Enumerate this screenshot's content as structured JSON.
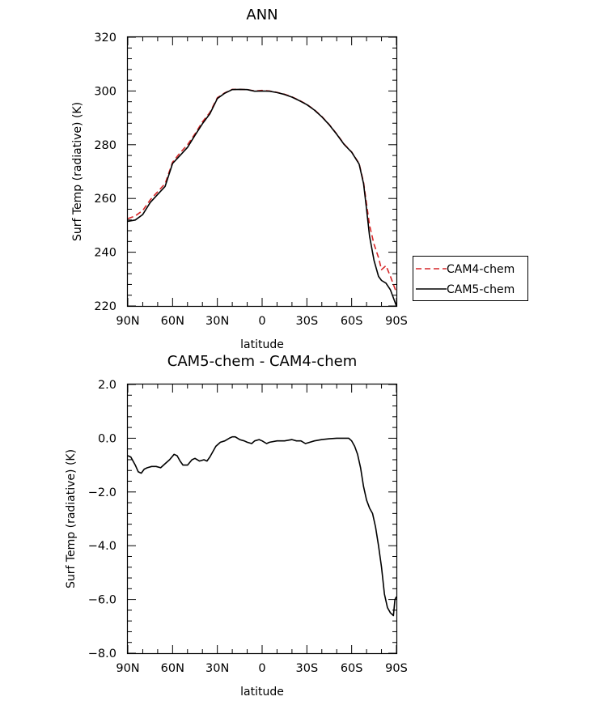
{
  "chart_data": [
    {
      "type": "line",
      "title": "ANN",
      "xlabel": "latitude",
      "ylabel": "Surf Temp (radiative) (K)",
      "xlim": [
        90,
        -90
      ],
      "ylim": [
        220,
        320
      ],
      "xticks": [
        {
          "value": 90,
          "label": "90N"
        },
        {
          "value": 60,
          "label": "60N"
        },
        {
          "value": 30,
          "label": "30N"
        },
        {
          "value": 0,
          "label": "0"
        },
        {
          "value": -30,
          "label": "30S"
        },
        {
          "value": -60,
          "label": "60S"
        },
        {
          "value": -90,
          "label": "90S"
        }
      ],
      "yticks": [
        {
          "value": 220,
          "label": "220"
        },
        {
          "value": 240,
          "label": "240"
        },
        {
          "value": 260,
          "label": "260"
        },
        {
          "value": 280,
          "label": "280"
        },
        {
          "value": 300,
          "label": "300"
        },
        {
          "value": 320,
          "label": "320"
        }
      ],
      "legend": {
        "placement": "right"
      },
      "series": [
        {
          "name": "CAM4-chem",
          "color": "#d62728",
          "dash": "dashed",
          "x": [
            90,
            85,
            80,
            75,
            70,
            65,
            60,
            55,
            50,
            45,
            40,
            35,
            30,
            25,
            20,
            15,
            10,
            5,
            0,
            -5,
            -10,
            -15,
            -20,
            -25,
            -30,
            -35,
            -40,
            -45,
            -50,
            -55,
            -60,
            -65,
            -68,
            -70,
            -72,
            -75,
            -78,
            -80,
            -83,
            -86,
            -90
          ],
          "y": [
            252.5,
            253.5,
            255.5,
            259.5,
            262.5,
            265.5,
            273.5,
            277,
            280,
            284,
            288.5,
            292,
            297.5,
            299.3,
            300.6,
            300.6,
            300.5,
            300,
            300.2,
            300,
            299.5,
            298.8,
            297.8,
            296.5,
            295,
            293,
            290.5,
            287.5,
            284,
            280.2,
            277.3,
            273,
            266,
            258,
            250,
            243,
            238,
            233.5,
            235,
            231,
            225
          ]
        },
        {
          "name": "CAM5-chem",
          "color": "#000000",
          "dash": "solid",
          "x": [
            90,
            85,
            80,
            75,
            70,
            65,
            60,
            55,
            50,
            45,
            40,
            35,
            30,
            25,
            20,
            15,
            10,
            5,
            0,
            -5,
            -10,
            -15,
            -20,
            -25,
            -30,
            -35,
            -40,
            -45,
            -50,
            -55,
            -60,
            -65,
            -68,
            -70,
            -72,
            -75,
            -78,
            -80,
            -83,
            -86,
            -90
          ],
          "y": [
            251.5,
            252,
            254,
            258.5,
            261.5,
            264.5,
            273,
            276,
            279,
            283.5,
            287.8,
            291.5,
            297.2,
            299.2,
            300.5,
            300.6,
            300.5,
            299.9,
            300,
            299.9,
            299.4,
            298.7,
            297.7,
            296.4,
            294.9,
            292.9,
            290.4,
            287.4,
            283.9,
            280.1,
            277.2,
            272.8,
            265.5,
            256,
            246,
            237,
            231,
            229.5,
            228.5,
            226,
            220
          ]
        }
      ]
    },
    {
      "type": "line",
      "title": "CAM5-chem - CAM4-chem",
      "xlabel": "latitude",
      "ylabel": "Surf Temp (radiative) (K)",
      "xlim": [
        90,
        -90
      ],
      "ylim": [
        -8,
        2
      ],
      "xticks": [
        {
          "value": 90,
          "label": "90N"
        },
        {
          "value": 60,
          "label": "60N"
        },
        {
          "value": 30,
          "label": "30N"
        },
        {
          "value": 0,
          "label": "0"
        },
        {
          "value": -30,
          "label": "30S"
        },
        {
          "value": -60,
          "label": "60S"
        },
        {
          "value": -90,
          "label": "90S"
        }
      ],
      "yticks": [
        {
          "value": -8,
          "label": "−8.0"
        },
        {
          "value": -6,
          "label": "−6.0"
        },
        {
          "value": -4,
          "label": "−4.0"
        },
        {
          "value": -2,
          "label": "−2.0"
        },
        {
          "value": 0,
          "label": "0.0"
        },
        {
          "value": 2,
          "label": "2.0"
        }
      ],
      "series": [
        {
          "color": "#000000",
          "dash": "solid",
          "x": [
            90,
            88,
            85,
            83,
            81,
            79,
            77,
            74,
            71,
            68,
            65,
            62,
            59,
            57,
            55,
            53,
            50,
            47,
            45,
            42,
            39,
            37,
            35,
            33,
            31,
            28,
            25,
            22,
            20,
            18,
            15,
            12,
            10,
            7,
            5,
            2,
            0,
            -3,
            -5,
            -10,
            -15,
            -20,
            -23,
            -26,
            -29,
            -32,
            -35,
            -40,
            -45,
            -50,
            -55,
            -58,
            -60,
            -62,
            -64,
            -66,
            -68,
            -70,
            -72,
            -74,
            -76,
            -78,
            -80,
            -82,
            -84,
            -86,
            -88,
            -89,
            -90
          ],
          "y": [
            -0.65,
            -0.7,
            -1.0,
            -1.25,
            -1.3,
            -1.15,
            -1.1,
            -1.05,
            -1.05,
            -1.1,
            -0.95,
            -0.8,
            -0.6,
            -0.65,
            -0.85,
            -1.0,
            -1.0,
            -0.8,
            -0.75,
            -0.85,
            -0.8,
            -0.85,
            -0.7,
            -0.5,
            -0.3,
            -0.15,
            -0.1,
            0.0,
            0.05,
            0.05,
            -0.05,
            -0.1,
            -0.15,
            -0.2,
            -0.1,
            -0.05,
            -0.1,
            -0.2,
            -0.15,
            -0.1,
            -0.1,
            -0.05,
            -0.1,
            -0.1,
            -0.2,
            -0.15,
            -0.1,
            -0.05,
            -0.02,
            0.0,
            0.0,
            0.0,
            -0.1,
            -0.3,
            -0.6,
            -1.1,
            -1.8,
            -2.3,
            -2.6,
            -2.8,
            -3.3,
            -4.0,
            -4.8,
            -5.8,
            -6.3,
            -6.5,
            -6.6,
            -6.0,
            -5.9
          ]
        }
      ]
    }
  ]
}
